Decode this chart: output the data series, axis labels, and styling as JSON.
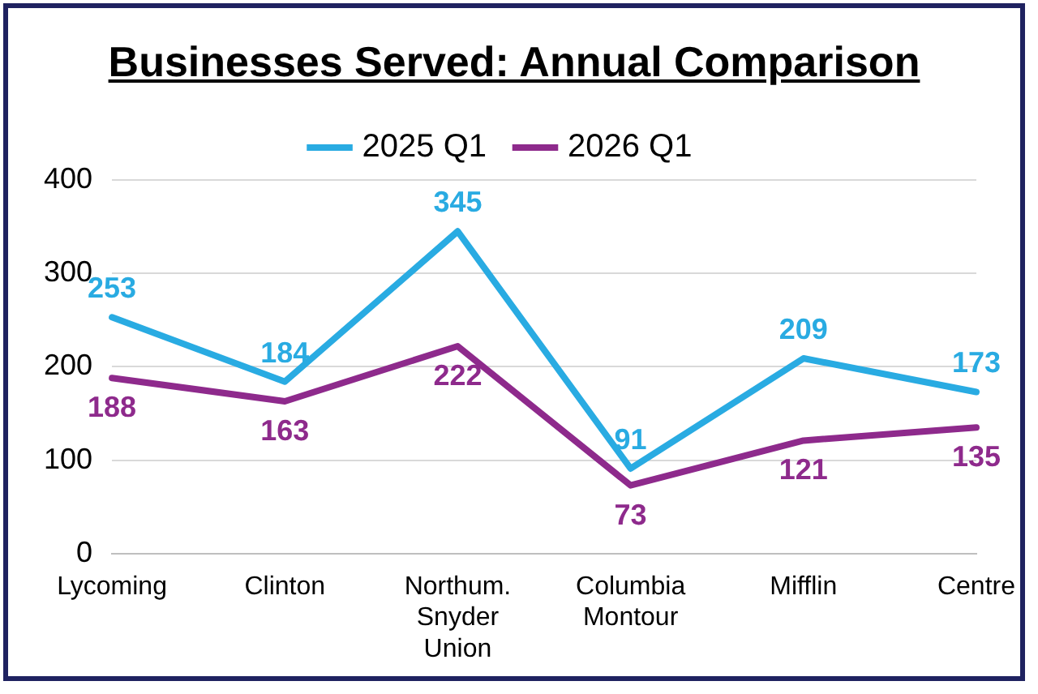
{
  "chart_data": {
    "type": "line",
    "title": "Businesses Served: Annual Comparison",
    "categories": [
      "Lycoming",
      "Clinton",
      "Northum. Snyder Union",
      "Columbia Montour",
      "Mifflin",
      "Centre"
    ],
    "series": [
      {
        "name": "2025 Q1",
        "color": "#29abe2",
        "values": [
          253,
          184,
          345,
          91,
          209,
          173
        ]
      },
      {
        "name": "2026 Q1",
        "color": "#8e2a8c",
        "values": [
          188,
          163,
          222,
          73,
          121,
          135
        ]
      }
    ],
    "ylim": [
      0,
      400
    ],
    "yticks": [
      0,
      100,
      200,
      300,
      400
    ],
    "grid": "y",
    "legend": "top",
    "marker": "none",
    "line_style": "solid",
    "data_labels": true
  }
}
